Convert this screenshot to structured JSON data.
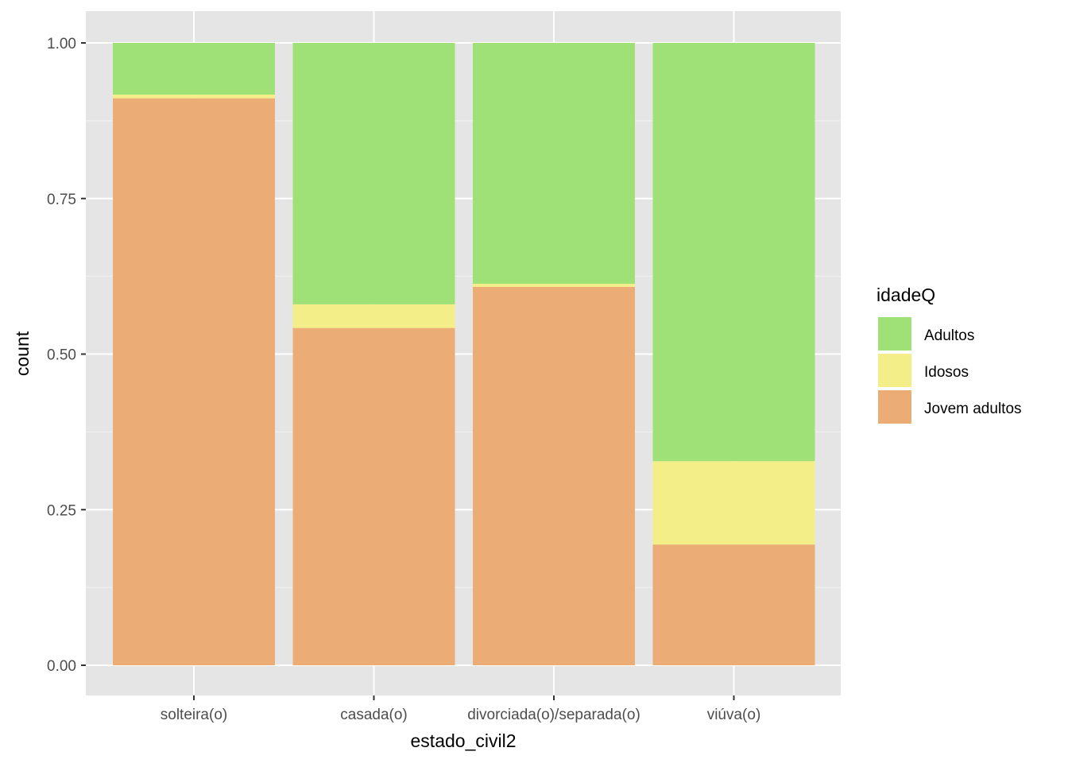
{
  "chart_data": {
    "type": "bar",
    "stacked": "fill",
    "title": "",
    "xlabel": "estado_civil2",
    "ylabel": "count",
    "ylim": [
      0,
      1
    ],
    "yticks": [
      "0.00",
      "0.25",
      "0.50",
      "0.75",
      "1.00"
    ],
    "ytick_values": [
      0,
      0.25,
      0.5,
      0.75,
      1
    ],
    "categories": [
      "solteira(o)",
      "casada(o)",
      "divorciada(o)/separada(o)",
      "viúva(o)"
    ],
    "series": [
      {
        "name": "Jovem adultos",
        "color": "#EBAD75",
        "values": [
          0.911,
          0.542,
          0.608,
          0.194
        ]
      },
      {
        "name": "Idosos",
        "color": "#F4EE89",
        "values": [
          0.006,
          0.038,
          0.005,
          0.134
        ]
      },
      {
        "name": "Adultos",
        "color": "#9FE077",
        "values": [
          0.083,
          0.42,
          0.387,
          0.672
        ]
      }
    ],
    "legend": {
      "title": "idadeQ",
      "position": "right",
      "order": [
        "Adultos",
        "Idosos",
        "Jovem adultos"
      ]
    },
    "grid": true
  }
}
